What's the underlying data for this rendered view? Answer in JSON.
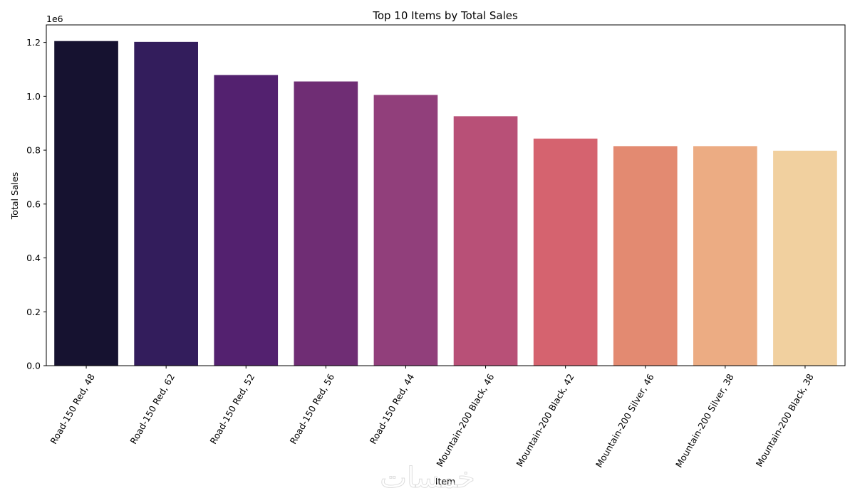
{
  "chart_data": {
    "type": "bar",
    "title": "Top 10 Items by Total Sales",
    "xlabel": "Item",
    "ylabel": "Total Sales",
    "y_offset_label": "1e6",
    "ylim": [
      0,
      1.265
    ],
    "y_ticks": [
      0.0,
      0.2,
      0.4,
      0.6,
      0.8,
      1.0,
      1.2
    ],
    "y_tick_labels": [
      "0.0",
      "0.2",
      "0.4",
      "0.6",
      "0.8",
      "1.0",
      "1.2"
    ],
    "categories": [
      "Road-150 Red, 48",
      "Road-150 Red, 62",
      "Road-150 Red, 52",
      "Road-150 Red, 56",
      "Road-150 Red, 44",
      "Mountain-200 Black, 46",
      "Mountain-200 Black, 42",
      "Mountain-200 Silver, 46",
      "Mountain-200 Silver, 38",
      "Mountain-200 Black, 38"
    ],
    "values": [
      1.205,
      1.202,
      1.079,
      1.055,
      1.005,
      0.926,
      0.843,
      0.815,
      0.815,
      0.798
    ],
    "colors": [
      "#161230",
      "#331d5c",
      "#53216f",
      "#6f2d74",
      "#913f7b",
      "#b85077",
      "#d5636f",
      "#e38a71",
      "#ecac83",
      "#f1d09f"
    ],
    "grid": false,
    "legend": "none"
  }
}
